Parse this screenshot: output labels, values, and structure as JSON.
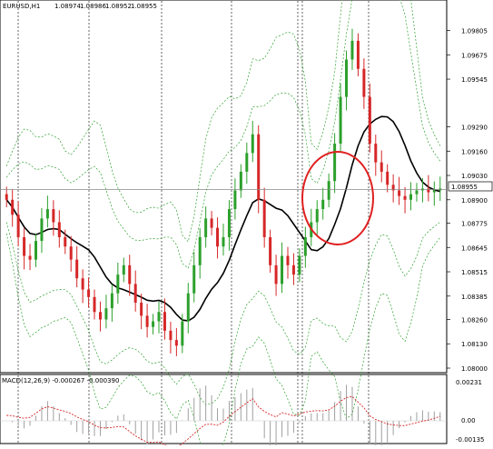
{
  "window": {
    "symbol": "EURUSD,H1",
    "ohlc": [
      "1.08974",
      "1.08986",
      "1.08952",
      "1.08955"
    ]
  },
  "colors": {
    "bull": "#2ca02c",
    "bear": "#d62728",
    "ma": "#000000",
    "bands": "#2ca02c",
    "macd_hist": "#a0a0a0",
    "macd_signal": "#d62728",
    "circle": "#e02020",
    "grid": "#000000"
  },
  "price_axis": {
    "ticks": [
      "1.09805",
      "1.09675",
      "1.09545",
      "1.09290",
      "1.09160",
      "1.09030",
      "1.08900",
      "1.08775",
      "1.08645",
      "1.08515",
      "1.08385",
      "1.08260",
      "1.08130",
      "1.08000"
    ],
    "current_price": "1.08955",
    "ylim": [
      1.08,
      1.099
    ]
  },
  "macd": {
    "label": "MACD(12,26,9) -0.000267 -0.000390",
    "ticks": [
      "0.00231",
      "0.00",
      "-0.00135"
    ]
  },
  "chart_data": {
    "type": "candlestick",
    "series_close": [
      1.089,
      1.0882,
      1.087,
      1.086,
      1.0858,
      1.0868,
      1.088,
      1.0885,
      1.0878,
      1.087,
      1.0865,
      1.0858,
      1.0848,
      1.0842,
      1.0838,
      1.083,
      1.0826,
      1.0832,
      1.084,
      1.085,
      1.0855,
      1.0845,
      1.0835,
      1.0828,
      1.0822,
      1.0825,
      1.083,
      1.082,
      1.0815,
      1.0812,
      1.0825,
      1.084,
      1.0855,
      1.087,
      1.088,
      1.0875,
      1.0865,
      1.087,
      1.0885,
      1.0895,
      1.0905,
      1.0915,
      1.0925,
      1.089,
      1.087,
      1.0855,
      1.0845,
      1.086,
      1.0855,
      1.085,
      1.086,
      1.087,
      1.0878,
      1.0885,
      1.089,
      1.09,
      1.092,
      1.0945,
      1.0965,
      1.0975,
      1.096,
      1.0945,
      1.092,
      1.091,
      1.0905,
      1.0898,
      1.0895,
      1.0892,
      1.089,
      1.0893,
      1.0895,
      1.0896,
      1.0894,
      1.0895,
      1.0896
    ]
  }
}
